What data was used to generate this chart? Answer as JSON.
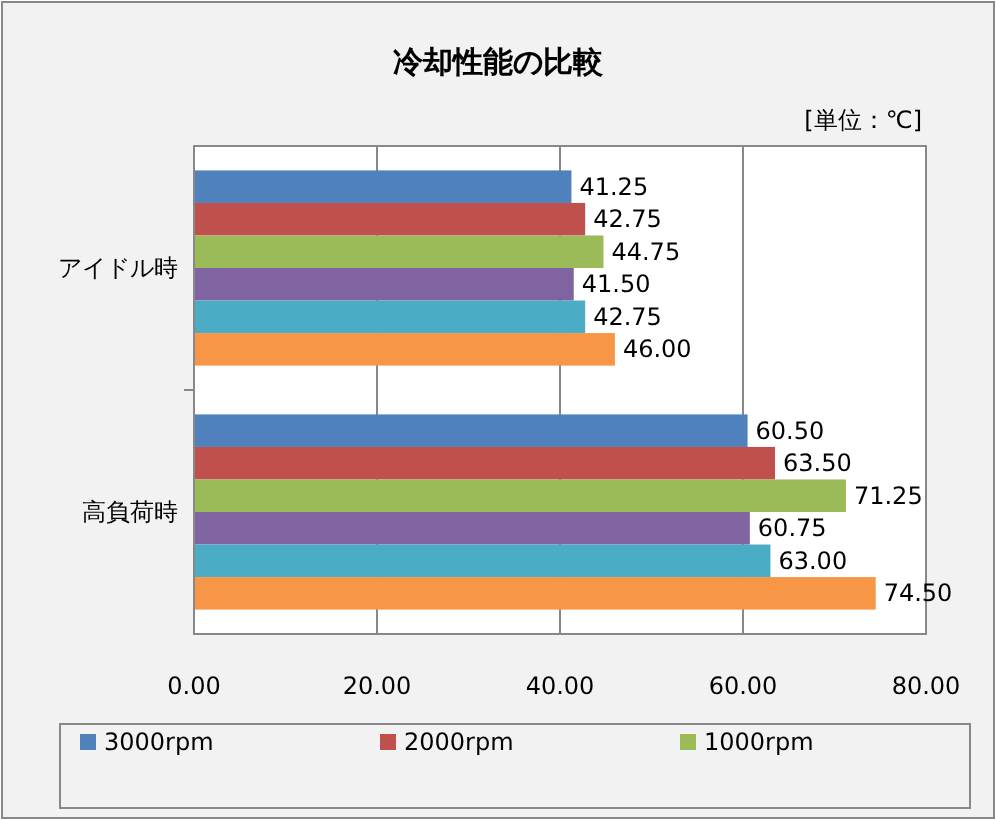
{
  "chart_data": {
    "type": "bar",
    "orientation": "horizontal",
    "title": "冷却性能の比較",
    "annotations": [
      "[単位：℃]"
    ],
    "categories": [
      "アイドル時",
      "高負荷時"
    ],
    "series": [
      {
        "name": "3000rpm",
        "color": "#4f81bd",
        "values": [
          41.25,
          60.5
        ],
        "value_labels": [
          "41.25",
          "60.50"
        ]
      },
      {
        "name": "2000rpm",
        "color": "#c0504d",
        "values": [
          42.75,
          63.5
        ],
        "value_labels": [
          "42.75",
          "63.50"
        ]
      },
      {
        "name": "1000rpm",
        "color": "#9bbb59",
        "values": [
          44.75,
          71.25
        ],
        "value_labels": [
          "44.75",
          "71.25"
        ]
      },
      {
        "color": "#8064a2",
        "values": [
          41.5,
          60.75
        ],
        "value_labels": [
          "41.50",
          "60.75"
        ]
      },
      {
        "color": "#4bacc6",
        "values": [
          42.75,
          63.0
        ],
        "value_labels": [
          "42.75",
          "63.00"
        ]
      },
      {
        "color": "#f79646",
        "values": [
          46.0,
          74.5
        ],
        "value_labels": [
          "46.00",
          "74.50"
        ]
      }
    ],
    "xlim": [
      0,
      80
    ],
    "xticks": [
      {
        "value": 0,
        "label": "0.00"
      },
      {
        "value": 20,
        "label": "20.00"
      },
      {
        "value": 40,
        "label": "40.00"
      },
      {
        "value": 60,
        "label": "60.00"
      },
      {
        "value": 80,
        "label": "80.00"
      }
    ],
    "grid": "x",
    "legend": "bottom"
  }
}
